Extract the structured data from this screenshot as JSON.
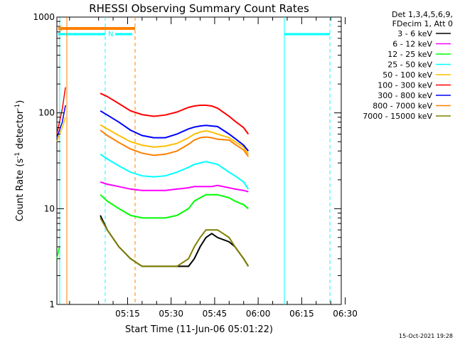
{
  "chart_data": {
    "type": "line",
    "title": "RHESSI Observing Summary Count Rates",
    "xlabel": "Start Time (11-Jun-06 05:01:22)",
    "ylabel_prefix": "Count Rate (s",
    "ylabel_sup1": "-1",
    "ylabel_mid": " detector",
    "ylabel_sup2": "-1",
    "ylabel_suffix": ")",
    "y_scale": "log",
    "ylim": [
      1,
      1000
    ],
    "xlim_minutes": [
      -9.37,
      88.63
    ],
    "x_tick_labels": [
      {
        "label": "05:15",
        "minutes": 15
      },
      {
        "label": "05:30",
        "minutes": 30
      },
      {
        "label": "05:45",
        "minutes": 45
      },
      {
        "label": "06:00",
        "minutes": 60
      },
      {
        "label": "06:15",
        "minutes": 75
      },
      {
        "label": "06:30",
        "minutes": 90
      }
    ],
    "y_tick_labels": [
      {
        "label": "1",
        "value": 1
      },
      {
        "label": "10",
        "value": 10
      },
      {
        "label": "100",
        "value": 100
      },
      {
        "label": "1000",
        "value": 1000
      }
    ],
    "legend_header_line1": "Det 1,3,4,5,6,9,",
    "legend_header_line2": "FDecim 1, Att 0",
    "legend_position": "right",
    "timestamp": "15-Oct-2021 19:28",
    "x": [
      5.6,
      8,
      12,
      16,
      20,
      24,
      28,
      32,
      36,
      38,
      40,
      42,
      44,
      46,
      50,
      52,
      55,
      56.6
    ],
    "series": [
      {
        "name": "3 - 6 keV",
        "color": "#000000",
        "values": [
          8.5,
          6,
          4,
          3,
          2.5,
          2.5,
          2.5,
          2.5,
          2.5,
          3,
          4,
          5,
          5.5,
          5,
          4.5,
          4,
          3,
          2.5
        ]
      },
      {
        "name": "6 - 12 keV",
        "color": "#ff00ff",
        "values": [
          19,
          18,
          17,
          16,
          15.5,
          15.5,
          15.5,
          16,
          16.5,
          17,
          17,
          17,
          17,
          17.5,
          16.5,
          16,
          15.5,
          15
        ]
      },
      {
        "name": "12 - 25 keV",
        "color": "#00ff00",
        "values": [
          14,
          12,
          10,
          8.5,
          8,
          8,
          8,
          8.5,
          10,
          12,
          13,
          14,
          14,
          14,
          13,
          12,
          11,
          10
        ]
      },
      {
        "name": "25 - 50 keV",
        "color": "#00ffff",
        "values": [
          37,
          33,
          28,
          24,
          22,
          21.5,
          22,
          24,
          27,
          29,
          30,
          31,
          30,
          29,
          24,
          22,
          19,
          16
        ]
      },
      {
        "name": "50 - 100 keV",
        "color": "#ffbf00",
        "values": [
          75,
          68,
          58,
          50,
          46,
          44,
          45,
          48,
          55,
          60,
          63,
          65,
          63,
          60,
          55,
          50,
          44,
          37
        ]
      },
      {
        "name": "100 - 300 keV",
        "color": "#ff0000",
        "values": [
          160,
          148,
          125,
          105,
          96,
          92,
          95,
          102,
          114,
          118,
          120,
          120,
          118,
          112,
          92,
          82,
          70,
          60
        ]
      },
      {
        "name": "300 - 800 keV",
        "color": "#0000ff",
        "values": [
          105,
          95,
          80,
          66,
          58,
          55,
          55,
          60,
          68,
          71,
          73,
          74,
          73,
          72,
          60,
          54,
          46,
          40
        ]
      },
      {
        "name": "800 - 7000 keV",
        "color": "#ff8000",
        "values": [
          66,
          58,
          49,
          42,
          38,
          36,
          37,
          40,
          47,
          52,
          55,
          56,
          55,
          53,
          52,
          47,
          41,
          35
        ]
      },
      {
        "name": "7000 - 15000 keV",
        "color": "#808000",
        "values": [
          8,
          6,
          4,
          3,
          2.5,
          2.5,
          2.5,
          2.5,
          3,
          4,
          5,
          6,
          6,
          6,
          5,
          4,
          3,
          2.5
        ]
      }
    ],
    "early_spikes": [
      {
        "color": "#ff0000",
        "x": [
          -9.37,
          -7.5,
          -6.4
        ],
        "values": [
          60,
          110,
          185
        ]
      },
      {
        "color": "#0000ff",
        "x": [
          -9.37,
          -7.5,
          -6.4
        ],
        "values": [
          55,
          80,
          120
        ]
      },
      {
        "color": "#ffbf00",
        "x": [
          -9.37,
          -7.5,
          -6.4
        ],
        "values": [
          50,
          70,
          90
        ]
      },
      {
        "color": "#00ff00",
        "x": [
          -9.37,
          -8.5
        ],
        "values": [
          3,
          4
        ]
      }
    ],
    "annotations": {
      "s_label": "S",
      "n_label": "N"
    }
  }
}
